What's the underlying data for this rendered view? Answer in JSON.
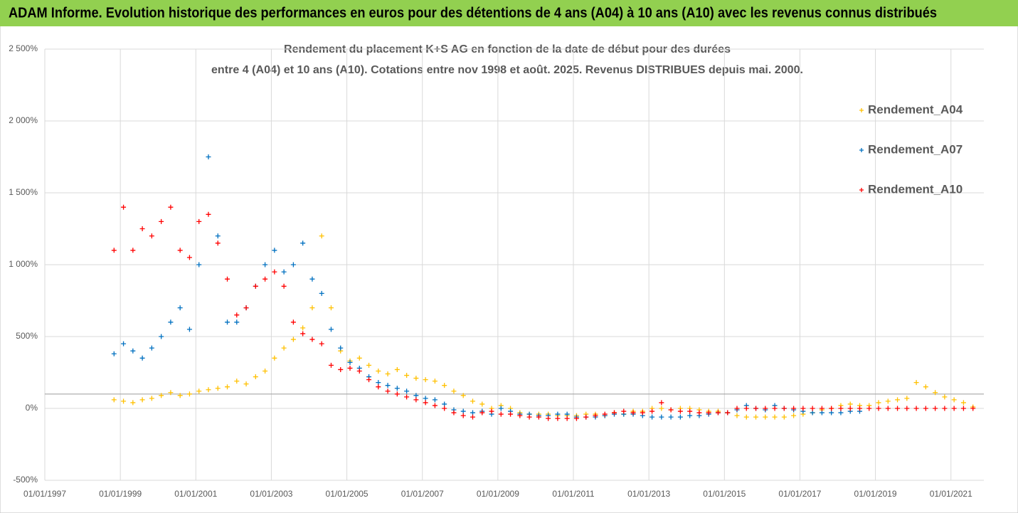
{
  "header": {
    "title": "ADAM Informe. Evolution historique des performances en euros pour des détentions de 4 ans (A04) à 10 ans (A10) avec les revenus connus distribués"
  },
  "chart_data": {
    "type": "scatter",
    "title": "Rendement du placement K+S AG en fonction de la date de début pour des durées",
    "subtitle": "entre 4 (A04) et 10 ans (A10). Cotations entre nov 1998 et août. 2025. Revenus DISTRIBUES depuis mai. 2000.",
    "x": [
      "01/11/1998",
      "01/02/1999",
      "01/05/1999",
      "01/08/1999",
      "01/11/1999",
      "01/02/2000",
      "01/05/2000",
      "01/08/2000",
      "01/11/2000",
      "01/02/2001",
      "01/05/2001",
      "01/08/2001",
      "01/11/2001",
      "01/02/2002",
      "01/05/2002",
      "01/08/2002",
      "01/11/2002",
      "01/02/2003",
      "01/05/2003",
      "01/08/2003",
      "01/11/2003",
      "01/02/2004",
      "01/05/2004",
      "01/08/2004",
      "01/11/2004",
      "01/02/2005",
      "01/05/2005",
      "01/08/2005",
      "01/11/2005",
      "01/02/2006",
      "01/05/2006",
      "01/08/2006",
      "01/11/2006",
      "01/02/2007",
      "01/05/2007",
      "01/08/2007",
      "01/11/2007",
      "01/02/2008",
      "01/05/2008",
      "01/08/2008",
      "01/11/2008",
      "01/02/2009",
      "01/05/2009",
      "01/08/2009",
      "01/11/2009",
      "01/02/2010",
      "01/05/2010",
      "01/08/2010",
      "01/11/2010",
      "01/02/2011",
      "01/05/2011",
      "01/08/2011",
      "01/11/2011",
      "01/02/2012",
      "01/05/2012",
      "01/08/2012",
      "01/11/2012",
      "01/02/2013",
      "01/05/2013",
      "01/08/2013",
      "01/11/2013",
      "01/02/2014",
      "01/05/2014",
      "01/08/2014",
      "01/11/2014",
      "01/02/2015",
      "01/05/2015",
      "01/08/2015",
      "01/11/2015",
      "01/02/2016",
      "01/05/2016",
      "01/08/2016",
      "01/11/2016",
      "01/02/2017",
      "01/05/2017",
      "01/08/2017",
      "01/11/2017",
      "01/02/2018",
      "01/05/2018",
      "01/08/2018",
      "01/11/2018",
      "01/02/2019",
      "01/05/2019",
      "01/08/2019",
      "01/11/2019",
      "01/02/2020",
      "01/05/2020",
      "01/08/2020",
      "01/11/2020",
      "01/02/2021",
      "01/05/2021",
      "01/08/2021"
    ],
    "series": [
      {
        "name": "Rendement_A04",
        "color": "#ffc000",
        "values": [
          60,
          50,
          40,
          60,
          70,
          90,
          110,
          90,
          100,
          120,
          130,
          140,
          150,
          190,
          170,
          220,
          260,
          350,
          420,
          480,
          560,
          700,
          1200,
          700,
          400,
          330,
          350,
          300,
          260,
          240,
          270,
          230,
          210,
          200,
          190,
          160,
          120,
          90,
          50,
          30,
          0,
          20,
          0,
          -30,
          -40,
          -40,
          -40,
          -50,
          -50,
          -50,
          -40,
          -40,
          -50,
          -30,
          -40,
          -20,
          -20,
          0,
          0,
          -10,
          0,
          0,
          -10,
          -20,
          -20,
          -30,
          -50,
          -60,
          -60,
          -60,
          -60,
          -60,
          -50,
          -40,
          -30,
          -10,
          0,
          20,
          30,
          20,
          20,
          40,
          50,
          60,
          70,
          180,
          150,
          110,
          80,
          60,
          40,
          10
        ]
      },
      {
        "name": "Rendement_A07",
        "color": "#0070c0",
        "values": [
          380,
          450,
          400,
          350,
          420,
          500,
          600,
          700,
          550,
          1000,
          1750,
          1200,
          600,
          600,
          700,
          850,
          1000,
          1100,
          950,
          1000,
          1150,
          900,
          800,
          550,
          420,
          320,
          280,
          220,
          180,
          160,
          140,
          120,
          90,
          70,
          60,
          30,
          -10,
          -20,
          -30,
          -20,
          -40,
          0,
          -20,
          -40,
          -40,
          -50,
          -50,
          -40,
          -40,
          -60,
          -60,
          -60,
          -50,
          -40,
          -40,
          -40,
          -50,
          -60,
          -60,
          -60,
          -60,
          -50,
          -50,
          -40,
          -30,
          -30,
          -10,
          20,
          0,
          -10,
          20,
          0,
          -10,
          -20,
          -30,
          -30,
          -30,
          -30,
          -20,
          -20,
          null,
          null,
          null,
          null,
          null,
          null,
          null,
          null,
          null,
          null,
          null,
          null
        ]
      },
      {
        "name": "Rendement_A10",
        "color": "#ff0000",
        "values": [
          1100,
          1400,
          1100,
          1250,
          1200,
          1300,
          1400,
          1100,
          1050,
          1300,
          1350,
          1150,
          900,
          650,
          700,
          850,
          900,
          950,
          850,
          600,
          520,
          480,
          450,
          300,
          270,
          280,
          260,
          200,
          150,
          120,
          100,
          80,
          60,
          40,
          20,
          0,
          -30,
          -50,
          -60,
          -30,
          -20,
          -40,
          -40,
          -50,
          -60,
          -60,
          -70,
          -70,
          -70,
          -70,
          -60,
          -50,
          -40,
          -30,
          -20,
          -30,
          -30,
          -20,
          40,
          -10,
          -20,
          -20,
          -30,
          -30,
          -30,
          -30,
          0,
          0,
          0,
          0,
          0,
          0,
          0,
          0,
          0,
          0,
          0,
          0,
          0,
          0,
          0,
          0,
          0,
          0,
          0,
          0,
          0,
          0,
          0,
          0,
          0,
          0
        ]
      }
    ],
    "xlim": [
      "01/01/1997",
      "15/11/2021"
    ],
    "xticks": [
      "01/01/1997",
      "01/01/1999",
      "01/01/2001",
      "01/01/2003",
      "01/01/2005",
      "01/01/2007",
      "01/01/2009",
      "01/01/2011",
      "01/01/2013",
      "01/01/2015",
      "01/01/2017",
      "01/01/2019",
      "01/01/2021"
    ],
    "ylim": [
      -500,
      2500
    ],
    "yticks": [
      {
        "value": -500,
        "label": "-500%"
      },
      {
        "value": 0,
        "label": "0%"
      },
      {
        "value": 500,
        "label": "500%"
      },
      {
        "value": 1000,
        "label": "1 000%"
      },
      {
        "value": 1500,
        "label": "1 500%"
      },
      {
        "value": 2000,
        "label": "2 000%"
      },
      {
        "value": 2500,
        "label": "2 500%"
      }
    ],
    "hline": 100,
    "grid": true,
    "legend": "right"
  }
}
